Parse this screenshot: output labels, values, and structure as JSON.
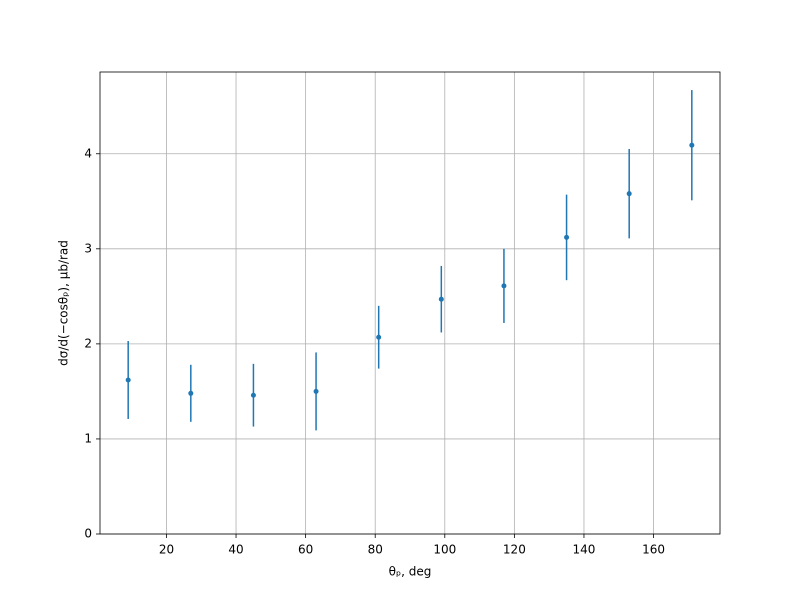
{
  "chart_data": {
    "type": "errorbar",
    "x_label": "θₚ, deg",
    "y_label": "dσ/d(−cosθₚ), μb/rad",
    "x": [
      9,
      27,
      45,
      63,
      81,
      99,
      117,
      135,
      153,
      171
    ],
    "series": [
      {
        "color": "#1f77b4",
        "values": [
          1.62,
          1.48,
          1.46,
          1.5,
          2.07,
          2.47,
          2.61,
          3.12,
          3.58,
          4.09
        ],
        "errors": [
          0.41,
          0.3,
          0.33,
          0.41,
          0.33,
          0.35,
          0.39,
          0.45,
          0.47,
          0.58
        ]
      }
    ],
    "xlim": [
      0.9,
      179.1
    ],
    "ylim": [
      0,
      4.86
    ],
    "xticks": [
      20,
      40,
      60,
      80,
      100,
      120,
      140,
      160
    ],
    "yticks": [
      0,
      1,
      2,
      3,
      4
    ],
    "grid": true
  }
}
